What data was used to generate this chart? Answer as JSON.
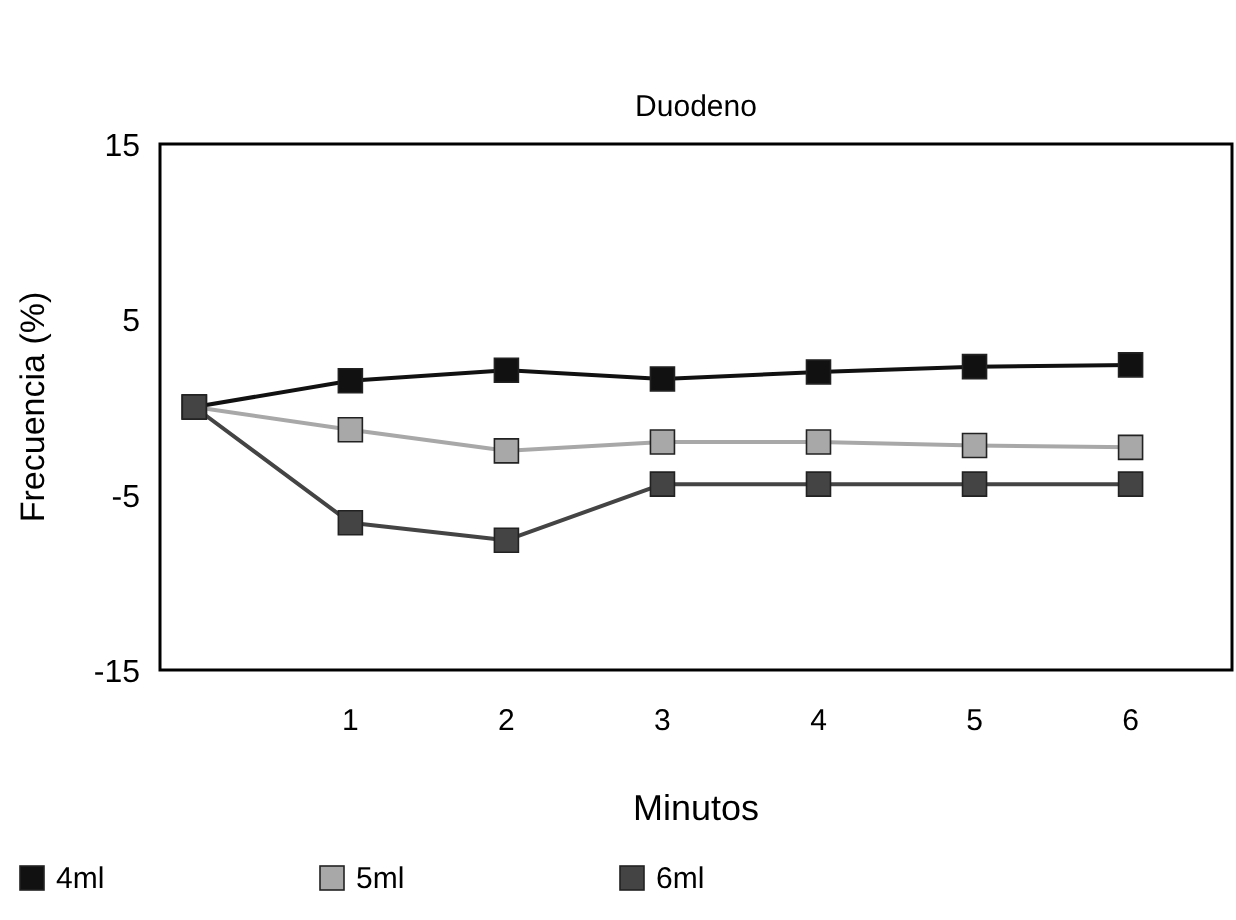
{
  "chart_data": {
    "type": "line",
    "title": "Duodeno",
    "xlabel": "Minutos",
    "ylabel": "Frecuencia (%)",
    "x": [
      0,
      1,
      2,
      3,
      4,
      5,
      6
    ],
    "xlim": [
      -0.22,
      6.65
    ],
    "xticks": [
      1,
      2,
      3,
      4,
      5,
      6
    ],
    "ylim": [
      -15,
      15
    ],
    "yticks": [
      -15,
      -5,
      5,
      15
    ],
    "grid": false,
    "legend": "bottom",
    "marker": "square",
    "line_style": "solid",
    "series": [
      {
        "name": "4ml",
        "color": "#111111",
        "values": [
          0,
          1.5,
          2.1,
          1.6,
          2,
          2.3,
          2.4
        ]
      },
      {
        "name": "5ml",
        "color": "#a8a8a8",
        "values": [
          0,
          -1.3,
          -2.5,
          -2,
          -2,
          -2.2,
          -2.3
        ]
      },
      {
        "name": "6ml",
        "color": "#444444",
        "values": [
          0,
          -6.6,
          -7.6,
          -4.4,
          -4.4,
          -4.4,
          -4.4
        ]
      }
    ]
  }
}
